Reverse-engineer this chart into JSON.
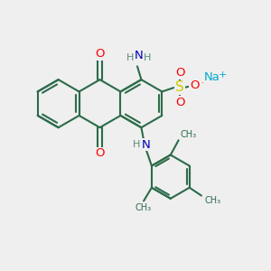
{
  "bg_color": "#efefef",
  "bond_color": "#2d6b4a",
  "o_color": "#ff0000",
  "n_color": "#0000bb",
  "s_color": "#cccc00",
  "na_color": "#00aacc",
  "h_color": "#5a8a7a",
  "line_width": 1.5,
  "fig_size": [
    3.0,
    3.0
  ],
  "dpi": 100,
  "xlim": [
    0,
    10
  ],
  "ylim": [
    0,
    10
  ]
}
